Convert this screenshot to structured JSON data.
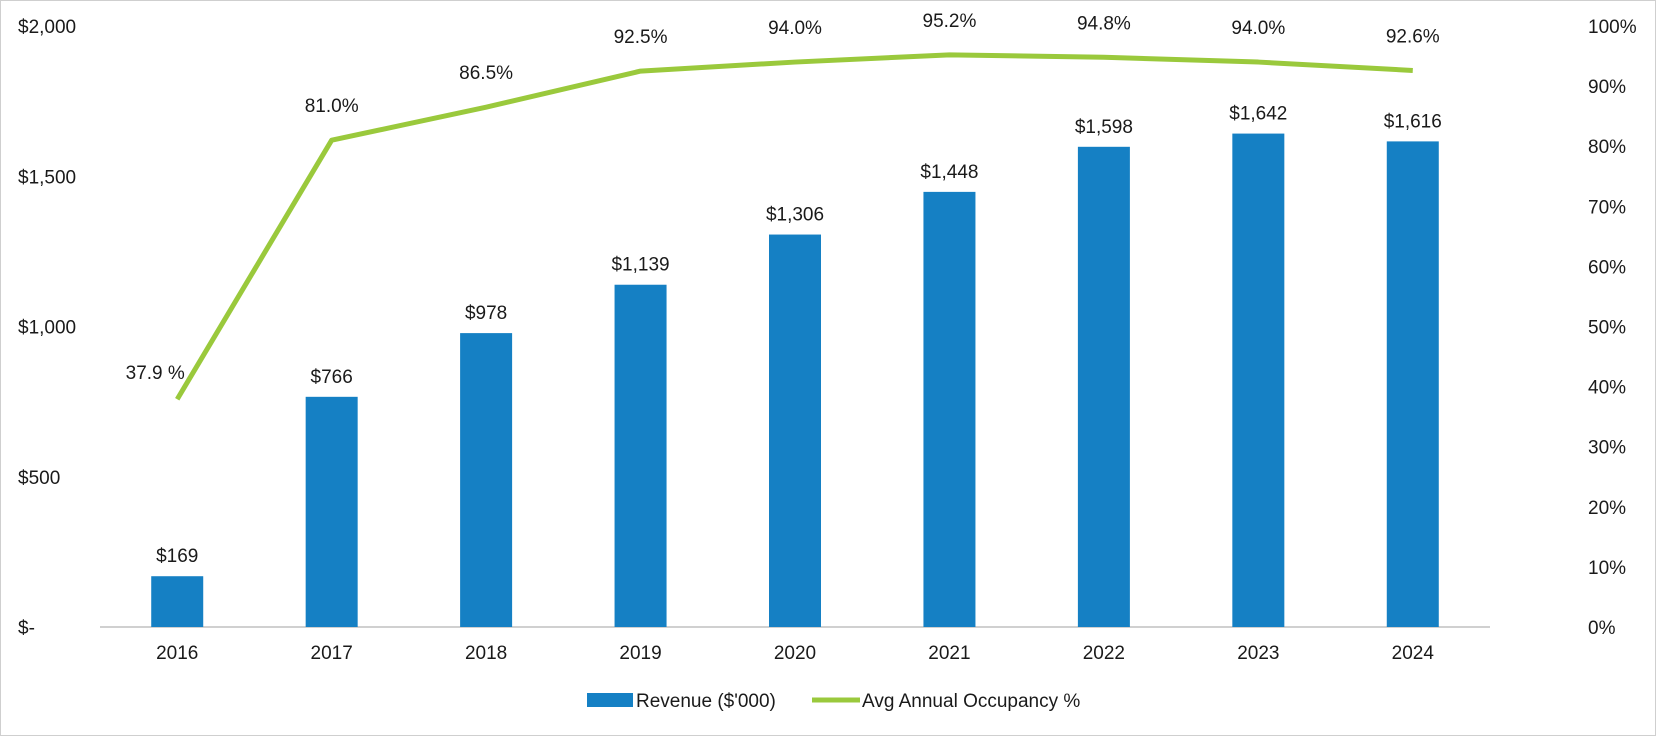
{
  "chart_data": {
    "type": "bar",
    "title": "",
    "categories": [
      "2016",
      "2017",
      "2018",
      "2019",
      "2020",
      "2021",
      "2022",
      "2023",
      "2024"
    ],
    "series": [
      {
        "name": "Revenue ($'000)",
        "kind": "bar",
        "axis": "left",
        "color": "#1580c4",
        "values": [
          169,
          766,
          978,
          1139,
          1306,
          1448,
          1598,
          1642,
          1616
        ],
        "labels": [
          "$169",
          "$766",
          "$978",
          "$1,139",
          "$1,306",
          "$1,448",
          "$1,598",
          "$1,642",
          "$1,616"
        ]
      },
      {
        "name": "Avg Annual Occupancy %",
        "kind": "line",
        "axis": "right",
        "color": "#9ac93c",
        "values": [
          37.9,
          81.0,
          86.5,
          92.5,
          94.0,
          95.2,
          94.8,
          94.0,
          92.6
        ],
        "labels": [
          "37.9 %",
          "81.0%",
          "86.5%",
          "92.5%",
          "94.0%",
          "95.2%",
          "94.8%",
          "94.0%",
          "92.6%"
        ]
      }
    ],
    "y_left": {
      "min": 0,
      "max": 2000,
      "ticks": [
        0,
        500,
        1000,
        1500,
        2000
      ],
      "tick_labels": [
        "$-",
        "$500",
        "$1,000",
        "$1,500",
        "$2,000"
      ]
    },
    "y_right": {
      "min": 0,
      "max": 100,
      "ticks": [
        0,
        10,
        20,
        30,
        40,
        50,
        60,
        70,
        80,
        90,
        100
      ],
      "tick_labels": [
        "0%",
        "10%",
        "20%",
        "30%",
        "40%",
        "50%",
        "60%",
        "70%",
        "80%",
        "90%",
        "100%"
      ]
    },
    "xlabel": "",
    "ylabel": "",
    "grid": false,
    "legend": "bottom-center",
    "axis_color": "#d0d0d0"
  }
}
